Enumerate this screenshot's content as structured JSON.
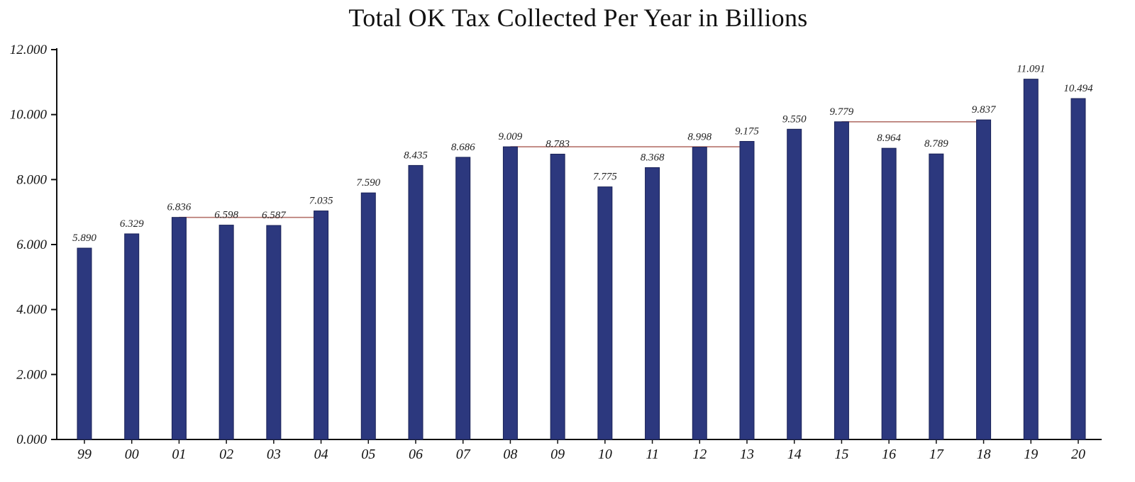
{
  "chart_data": {
    "type": "bar",
    "title": "Total OK Tax Collected Per Year in Billions",
    "xlabel": "",
    "ylabel": "",
    "ylim": [
      0,
      12
    ],
    "yticks": [
      0,
      2,
      4,
      6,
      8,
      10,
      12
    ],
    "ytick_labels": [
      "0.000",
      "2.000",
      "4.000",
      "6.000",
      "8.000",
      "10.000",
      "12.000"
    ],
    "grid": false,
    "legend": "none",
    "categories": [
      "99",
      "00",
      "01",
      "02",
      "03",
      "04",
      "05",
      "06",
      "07",
      "08",
      "09",
      "10",
      "11",
      "12",
      "13",
      "14",
      "15",
      "16",
      "17",
      "18",
      "19",
      "20"
    ],
    "values": [
      5.89,
      6.329,
      6.836,
      6.598,
      6.587,
      7.035,
      7.59,
      8.435,
      8.686,
      9.009,
      8.783,
      7.775,
      8.368,
      8.998,
      9.175,
      9.55,
      9.779,
      8.964,
      8.789,
      9.837,
      11.091,
      10.494
    ],
    "value_labels": [
      "5.890",
      "6.329",
      "6.836",
      "6.598",
      "6.587",
      "7.035",
      "7.590",
      "8.435",
      "8.686",
      "9.009",
      "8.783",
      "7.775",
      "8.368",
      "8.998",
      "9.175",
      "9.550",
      "9.779",
      "8.964",
      "8.789",
      "9.837",
      "11.091",
      "10.494"
    ],
    "reference_lines": [
      {
        "from": "01",
        "to": "04",
        "y": 6.836
      },
      {
        "from": "08",
        "to": "13",
        "y": 9.009
      },
      {
        "from": "15",
        "to": "18",
        "y": 9.779
      }
    ],
    "colors": {
      "bar": "#2c387e",
      "bar_edge": "#1a2257",
      "reference_line": "#b5736c",
      "axis": "#111111"
    }
  }
}
